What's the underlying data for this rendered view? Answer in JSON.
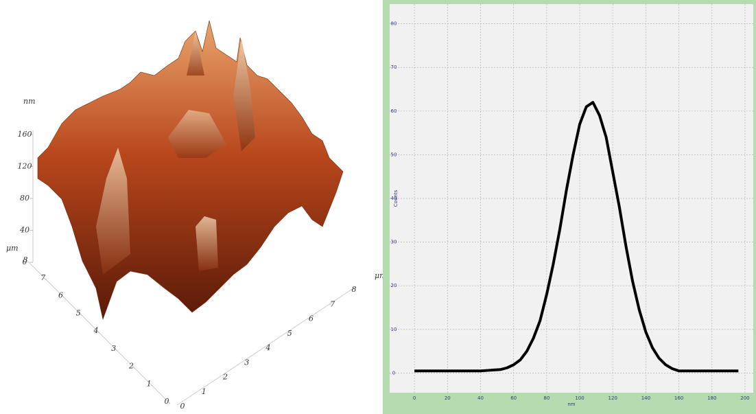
{
  "chart_data": [
    {
      "type": "surface3d",
      "z_label": "nm",
      "zticks": [
        0,
        40,
        80,
        120,
        160
      ],
      "y_label": "μm",
      "yticks": [
        0,
        1,
        2,
        3,
        4,
        5,
        6,
        7,
        8
      ],
      "x_label": "μm",
      "xticks": [
        0,
        1,
        2,
        3,
        4,
        5,
        6,
        7,
        8
      ]
    },
    {
      "type": "line",
      "x_label": "nm",
      "y_label": "Counts",
      "x": [
        0,
        4,
        8,
        12,
        16,
        20,
        24,
        28,
        32,
        36,
        40,
        44,
        48,
        52,
        56,
        60,
        64,
        68,
        72,
        76,
        80,
        84,
        88,
        92,
        96,
        100,
        104,
        108,
        112,
        116,
        120,
        124,
        128,
        132,
        136,
        140,
        144,
        148,
        152,
        156,
        160,
        164,
        168,
        172,
        176,
        180,
        184,
        188,
        192,
        196
      ],
      "series": [
        {
          "name": "Counts",
          "color": "#000000",
          "values": [
            0.5,
            0.5,
            0.5,
            0.5,
            0.5,
            0.5,
            0.5,
            0.5,
            0.5,
            0.5,
            0.5,
            0.6,
            0.7,
            0.8,
            1.2,
            1.9,
            3,
            5,
            8,
            12,
            18,
            25,
            33,
            42,
            50,
            57,
            61,
            62,
            59,
            54,
            46,
            38,
            29,
            21,
            14.5,
            9.4,
            5.8,
            3.4,
            1.9,
            1,
            0.5,
            0.5,
            0.5,
            0.5,
            0.5,
            0.5,
            0.5,
            0.5,
            0.5,
            0.5
          ]
        }
      ],
      "xlim": [
        -15,
        205
      ],
      "xticks": [
        0,
        20,
        40,
        60,
        80,
        100,
        120,
        140,
        160,
        180,
        200
      ],
      "ylim": [
        -4.5,
        84.5
      ],
      "yticks": [
        0,
        10,
        20,
        30,
        40,
        50,
        60,
        70,
        80
      ],
      "grid": true
    }
  ]
}
